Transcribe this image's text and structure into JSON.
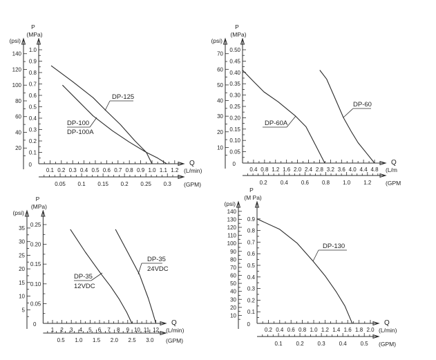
{
  "chart_data": [
    {
      "type": "line",
      "ylabel": "P",
      "y_units": [
        "(MPa)",
        "(psi)"
      ],
      "xlabel": "Q",
      "x_units": [
        "(L/min)",
        "(GPM)"
      ],
      "origin_label": "0",
      "xlim": [
        0,
        1.2
      ],
      "ylim": [
        0,
        1.0
      ],
      "y_ticks_mpa": [
        "0.1",
        "0.2",
        "0.3",
        "0.4",
        "0.5",
        "0.6",
        "0.7",
        "0.8",
        "0.9",
        "1.0"
      ],
      "y_ticks_psi": [
        "20",
        "40",
        "60",
        "80",
        "100",
        "120",
        "140"
      ],
      "x_ticks_lmin": [
        "0.1",
        "0.2",
        "0.3",
        "0.4",
        "0.5",
        "0.6",
        "0.7",
        "0.8",
        "0.9",
        "1.0",
        "1.1",
        "1.2"
      ],
      "x_ticks_gpm": [
        "0.05",
        "0.1",
        "0.15",
        "0.2",
        "0.25",
        "0.3"
      ],
      "series": [
        {
          "name": "DP-125",
          "points": [
            [
              0.11,
              0.86
            ],
            [
              0.3,
              0.72
            ],
            [
              0.48,
              0.58
            ],
            [
              0.6,
              0.46
            ],
            [
              0.72,
              0.345
            ],
            [
              0.85,
              0.2
            ],
            [
              0.95,
              0.1
            ],
            [
              1.0,
              0.0
            ]
          ]
        },
        {
          "name": "DP-100",
          "name_line2": "DP-100A",
          "points": [
            [
              0.21,
              0.69
            ],
            [
              0.35,
              0.55
            ],
            [
              0.48,
              0.42
            ],
            [
              0.65,
              0.29
            ],
            [
              0.8,
              0.19
            ],
            [
              0.95,
              0.1
            ],
            [
              1.05,
              0.05
            ],
            [
              1.13,
              0.0
            ]
          ]
        }
      ]
    },
    {
      "type": "line",
      "ylabel": "P",
      "y_units": [
        "(MPa)",
        "(psi)"
      ],
      "xlabel": "Q",
      "x_units": [
        "(L/m",
        "(GPM"
      ],
      "origin_label": "0",
      "xlim": [
        0,
        4.8
      ],
      "ylim": [
        0,
        0.5
      ],
      "y_ticks_mpa": [
        "0.05",
        "0.10",
        "0.15",
        "0.20",
        "0.25",
        "0.30",
        "0.35",
        "0.40",
        "0.45",
        "0.50"
      ],
      "y_ticks_psi": [
        "10",
        "20",
        "30",
        "40",
        "50",
        "60",
        "70"
      ],
      "x_ticks_lmin": [
        "0.4",
        "0.8",
        "1.2",
        "1.6",
        "2.0",
        "2.4",
        "2.8",
        "3.2",
        "3.6",
        "4.0",
        "4.4",
        "4.8"
      ],
      "x_ticks_gpm": [
        "0.2",
        "0.4",
        "0.6",
        "0.8",
        "1.0",
        "1.2"
      ],
      "series": [
        {
          "name": "DP-60A",
          "points": [
            [
              0.0,
              0.41
            ],
            [
              0.4,
              0.36
            ],
            [
              0.78,
              0.314
            ],
            [
              1.3,
              0.27
            ],
            [
              1.93,
              0.207
            ],
            [
              2.31,
              0.16
            ],
            [
              2.65,
              0.08
            ],
            [
              2.99,
              0.0
            ]
          ]
        },
        {
          "name": "DP-60",
          "points": [
            [
              2.81,
              0.41
            ],
            [
              3.06,
              0.37
            ],
            [
              3.35,
              0.29
            ],
            [
              3.67,
              0.2
            ],
            [
              3.95,
              0.14
            ],
            [
              4.2,
              0.09
            ],
            [
              4.5,
              0.045
            ],
            [
              4.8,
              0.0
            ]
          ]
        }
      ]
    },
    {
      "type": "line",
      "ylabel": "P",
      "y_units": [
        "(MPa)",
        "(psi)"
      ],
      "xlabel": "Q",
      "x_units": [
        "(L/min)",
        "(GPM)"
      ],
      "origin_label": "0",
      "xlim": [
        0,
        12
      ],
      "ylim": [
        0,
        0.25
      ],
      "y_ticks_mpa": [
        "0.05",
        "0.10",
        "0.15",
        "0.20",
        "0.25"
      ],
      "y_ticks_psi": [
        "5",
        "10",
        "15",
        "20",
        "25",
        "30",
        "35"
      ],
      "x_ticks_lmin": [
        "1",
        "2",
        "3",
        "4",
        "5",
        "6",
        "7",
        "8",
        "9",
        "10",
        "11",
        "12"
      ],
      "x_ticks_gpm": [
        "0.5",
        "1.0",
        "1.5",
        "2.0",
        "2.5",
        "3.0"
      ],
      "series": [
        {
          "name": "DP-35",
          "name_line2": "12VDC",
          "points": [
            [
              2.9,
              0.238
            ],
            [
              4.5,
              0.18
            ],
            [
              6.2,
              0.124
            ],
            [
              7.2,
              0.093
            ],
            [
              8.1,
              0.061
            ],
            [
              8.9,
              0.028
            ],
            [
              9.45,
              0.0
            ]
          ]
        },
        {
          "name": "DP-35",
          "name_line2": "24VDC",
          "points": [
            [
              7.7,
              0.238
            ],
            [
              9.0,
              0.18
            ],
            [
              10.25,
              0.124
            ],
            [
              11.2,
              0.063
            ],
            [
              11.6,
              0.032
            ],
            [
              12.0,
              0.0
            ]
          ]
        }
      ]
    },
    {
      "type": "line",
      "ylabel": "P",
      "y_units": [
        "(M Pa)",
        "(psi)"
      ],
      "xlabel": "Q",
      "x_units": [
        "(L/min)",
        "(GPM)"
      ],
      "origin_label": "0",
      "xlim": [
        0,
        2.0
      ],
      "ylim": [
        0,
        0.9
      ],
      "y_ticks_mpa": [
        "0.1",
        "0.2",
        "0.3",
        "0.4",
        "0.5",
        "0.6",
        "0.7",
        "0.8",
        "0.9"
      ],
      "y_ticks_psi": [
        "10",
        "20",
        "30",
        "40",
        "50",
        "60",
        "70",
        "80",
        "90",
        "100",
        "110",
        "120",
        "130",
        "140"
      ],
      "x_ticks_lmin": [
        "0.2",
        "0.4",
        "0.6",
        "0.8",
        "1.0",
        "1.2",
        "1.4",
        "1.6",
        "1.8",
        "2.0"
      ],
      "x_ticks_gpm": [
        "0.1",
        "0.2",
        "0.3",
        "0.4",
        "0.5"
      ],
      "series": [
        {
          "name": "DP-130",
          "points": [
            [
              0.0,
              0.9
            ],
            [
              0.4,
              0.81
            ],
            [
              0.71,
              0.69
            ],
            [
              0.99,
              0.535
            ],
            [
              1.2,
              0.41
            ],
            [
              1.4,
              0.27
            ],
            [
              1.55,
              0.15
            ],
            [
              1.68,
              0.0
            ]
          ]
        }
      ]
    }
  ]
}
